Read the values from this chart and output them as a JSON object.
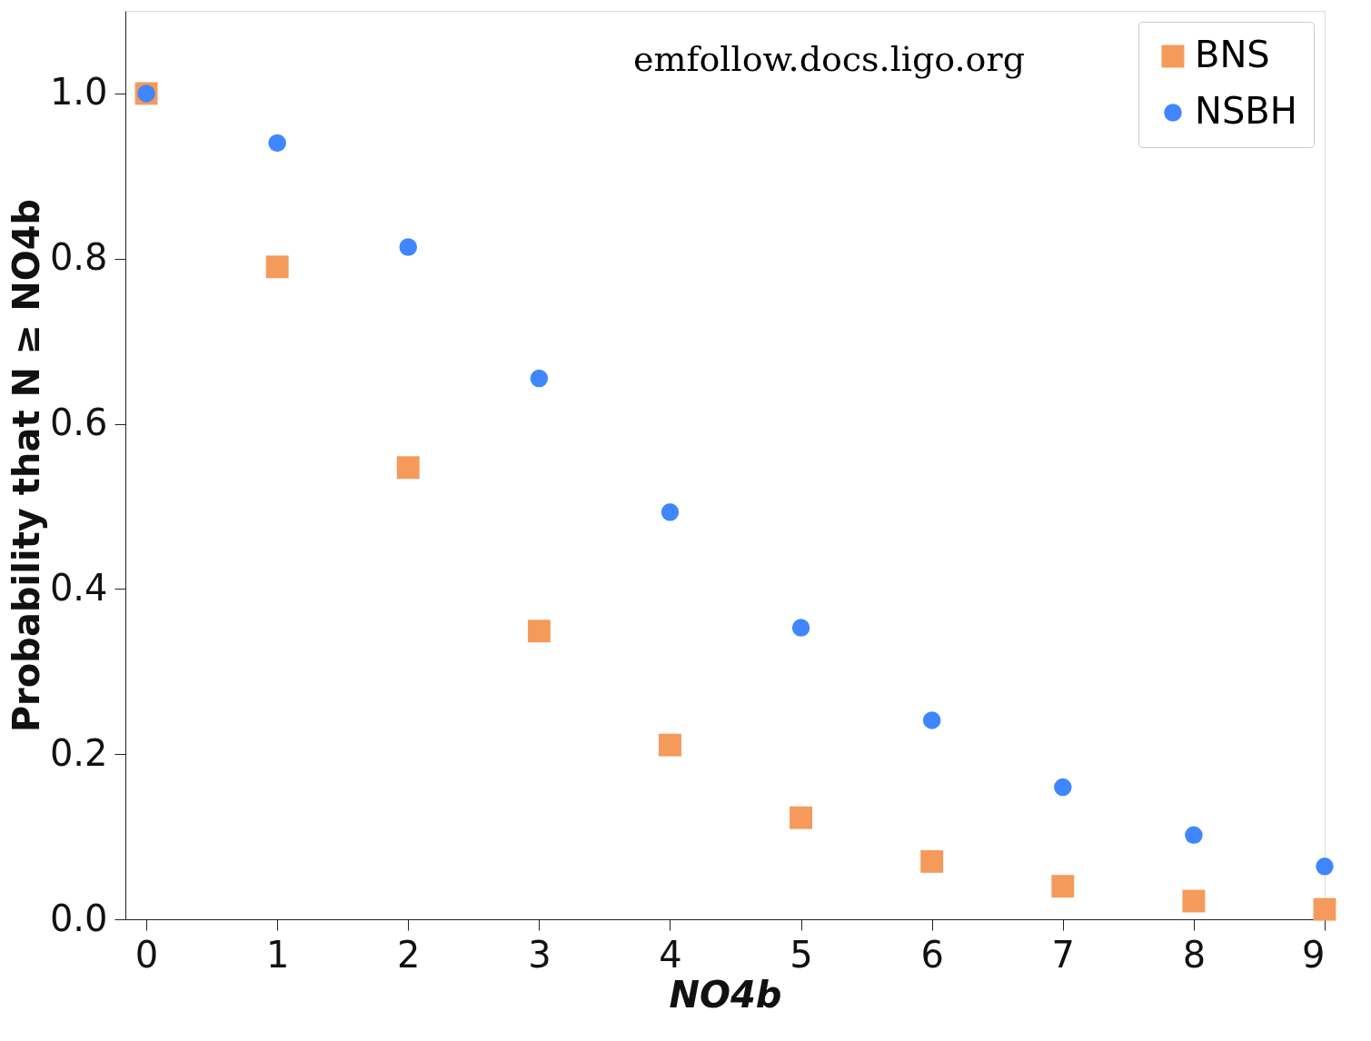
{
  "chart_data": {
    "type": "scatter",
    "xlabel": "NO4b",
    "ylabel": "Probability that N ≥ NO4b",
    "x": [
      0,
      1,
      2,
      3,
      4,
      5,
      6,
      7,
      8,
      9
    ],
    "series": [
      {
        "name": "BNS",
        "color": "#f59a5a",
        "marker": "square",
        "values": [
          1.0,
          0.79,
          0.547,
          0.349,
          0.211,
          0.123,
          0.07,
          0.04,
          0.022,
          0.012
        ]
      },
      {
        "name": "NSBH",
        "color": "#3f86ff",
        "marker": "circle",
        "values": [
          1.0,
          0.94,
          0.814,
          0.655,
          0.493,
          0.353,
          0.241,
          0.16,
          0.102,
          0.064
        ]
      }
    ],
    "xlim": [
      -0.16,
      9.0
    ],
    "ylim": [
      0,
      1.1
    ],
    "xticks": [
      0,
      1,
      2,
      3,
      4,
      5,
      6,
      7,
      8,
      9
    ],
    "yticks": [
      {
        "value": 0,
        "label": "0.0"
      },
      {
        "value": 0.2,
        "label": "0.2"
      },
      {
        "value": 0.4,
        "label": "0.4"
      },
      {
        "value": 0.6,
        "label": "0.6"
      },
      {
        "value": 0.8,
        "label": "0.8"
      },
      {
        "value": 1.0,
        "label": "1.0"
      }
    ],
    "legend": "top right",
    "grid": false,
    "annotations": [
      "emfollow.docs.ligo.org"
    ]
  }
}
